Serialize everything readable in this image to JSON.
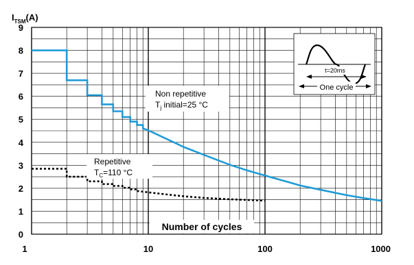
{
  "chart_data": {
    "type": "line",
    "xscale": "log",
    "xlim": [
      1,
      1000
    ],
    "ylim": [
      0,
      9
    ],
    "grid": true,
    "ylabel_main": "I",
    "ylabel_sub": "TSM",
    "ylabel_unit": "(A)",
    "xlabel": "Number of cycles",
    "y_ticks": [
      "0",
      "1",
      "2",
      "3",
      "4",
      "5",
      "6",
      "7",
      "8",
      "9"
    ],
    "x_ticks": [
      {
        "value": 1,
        "label": "1"
      },
      {
        "value": 10,
        "label": "10"
      },
      {
        "value": 100,
        "label": "100"
      },
      {
        "value": 1000,
        "label": "1000"
      }
    ],
    "series": [
      {
        "name": "Non repetitive",
        "style": "solid",
        "color": "#1e9bd7",
        "points": [
          [
            1,
            8.0
          ],
          [
            2,
            8.0
          ],
          [
            2,
            6.7
          ],
          [
            3,
            6.7
          ],
          [
            3,
            6.05
          ],
          [
            4,
            6.05
          ],
          [
            4,
            5.65
          ],
          [
            5,
            5.65
          ],
          [
            5,
            5.35
          ],
          [
            6,
            5.35
          ],
          [
            6,
            5.1
          ],
          [
            7,
            5.1
          ],
          [
            7,
            4.9
          ],
          [
            8,
            4.9
          ],
          [
            8,
            4.75
          ],
          [
            9,
            4.75
          ],
          [
            9,
            4.6
          ],
          [
            10,
            4.52
          ],
          [
            15,
            4.1
          ],
          [
            20,
            3.8
          ],
          [
            30,
            3.45
          ],
          [
            50,
            3.02
          ],
          [
            70,
            2.78
          ],
          [
            100,
            2.55
          ],
          [
            150,
            2.3
          ],
          [
            200,
            2.12
          ],
          [
            300,
            1.93
          ],
          [
            500,
            1.7
          ],
          [
            700,
            1.57
          ],
          [
            1000,
            1.45
          ]
        ]
      },
      {
        "name": "Repetitive",
        "style": "dotted",
        "color": "#000000",
        "points": [
          [
            1,
            2.85
          ],
          [
            2,
            2.85
          ],
          [
            2,
            2.5
          ],
          [
            3,
            2.5
          ],
          [
            3,
            2.3
          ],
          [
            4,
            2.3
          ],
          [
            4,
            2.18
          ],
          [
            5,
            2.18
          ],
          [
            5,
            2.1
          ],
          [
            6,
            2.1
          ],
          [
            6,
            2.02
          ],
          [
            7,
            2.02
          ],
          [
            7,
            1.95
          ],
          [
            8,
            1.95
          ],
          [
            8,
            1.88
          ],
          [
            10,
            1.82
          ],
          [
            15,
            1.72
          ],
          [
            20,
            1.65
          ],
          [
            30,
            1.58
          ],
          [
            50,
            1.52
          ],
          [
            70,
            1.49
          ],
          [
            100,
            1.46
          ]
        ]
      }
    ],
    "annotations": {
      "non_repetitive_line1": "Non repetitive",
      "non_repetitive_line2_prefix": "T",
      "non_repetitive_line2_sub": "j",
      "non_repetitive_line2_suffix": " initial=25 °C",
      "repetitive_line1": "Repetitive",
      "repetitive_line2_prefix": "T",
      "repetitive_line2_sub": "C",
      "repetitive_line2_suffix": "=110 °C",
      "inset_time": "t=20ms",
      "inset_cycle": "One cycle"
    }
  }
}
